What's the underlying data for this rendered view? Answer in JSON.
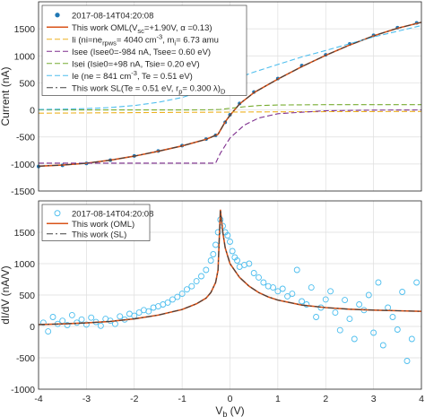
{
  "chart_data": [
    {
      "type": "line",
      "ylabel": "Current (nA)",
      "xlim": [
        -4,
        4
      ],
      "ylim": [
        -1500,
        2000
      ],
      "yticks": [
        -1500,
        -1000,
        -500,
        0,
        500,
        1000,
        1500
      ],
      "grid": true,
      "legend": "top-left",
      "series": [
        {
          "name": "2017-08-14T04:20:08",
          "style": "markers",
          "color": "#1f77b4",
          "x": [
            -4.0,
            -3.5,
            -3.0,
            -2.5,
            -2.0,
            -1.5,
            -1.0,
            -0.5,
            -0.3,
            -0.1,
            0.0,
            0.2,
            0.5,
            1.0,
            1.5,
            2.0,
            2.5,
            3.0,
            3.5,
            3.9
          ],
          "y": [
            -1045,
            -1025,
            -990,
            -930,
            -850,
            -760,
            -660,
            -540,
            -470,
            -230,
            -90,
            120,
            330,
            580,
            820,
            1020,
            1220,
            1380,
            1520,
            1610
          ]
        },
        {
          "name": "This work OML(V",
          "name_sub": "sc",
          "name_tail": "=+1.90V, α =0.13)",
          "color": "#d95319",
          "x": [
            -4.0,
            -3.5,
            -3.0,
            -2.5,
            -2.0,
            -1.5,
            -1.0,
            -0.5,
            -0.25,
            -0.1,
            0.0,
            0.2,
            0.5,
            1.0,
            1.5,
            2.0,
            2.5,
            3.0,
            3.5,
            4.0
          ],
          "y": [
            -1040,
            -1020,
            -985,
            -930,
            -855,
            -765,
            -665,
            -545,
            -450,
            -220,
            -100,
            110,
            320,
            570,
            800,
            1010,
            1200,
            1370,
            1510,
            1620
          ]
        },
        {
          "name": "Ii (ni=ne",
          "name_sub": "rpws",
          "name_tail": "= 4040 cm",
          "name_sup": "-3",
          "name_end": ", m",
          "name_sub2": "i",
          "name_end2": "= 6.73 amu",
          "style": "dashed",
          "color": "#edb120",
          "x": [
            -4,
            -3,
            -2,
            -1,
            0,
            1,
            2,
            3,
            4
          ],
          "y": [
            -60,
            -55,
            -50,
            -45,
            -40,
            -35,
            -32,
            -30,
            -28
          ]
        },
        {
          "name": "Isee (Isee0=-984 nA, Tsee= 0.60 eV)",
          "style": "dashed",
          "color": "#7e2f8e",
          "x": [
            -4,
            -3,
            -2,
            -1,
            -0.3,
            -0.2,
            0,
            0.3,
            0.6,
            1,
            2,
            3,
            4
          ],
          "y": [
            -984,
            -984,
            -984,
            -984,
            -984,
            -800,
            -520,
            -280,
            -150,
            -70,
            -15,
            -3,
            0
          ]
        },
        {
          "name": "Isei (Isie0=+98 nA, Tsie= 0.20 eV)",
          "style": "dashed",
          "color": "#77ac30",
          "x": [
            -4,
            -2,
            -0.5,
            -0.2,
            0,
            0.3,
            0.6,
            1,
            2,
            3,
            4
          ],
          "y": [
            0,
            0,
            2,
            10,
            30,
            60,
            80,
            90,
            97,
            98,
            98
          ]
        },
        {
          "name": "Ie (ne =  841 cm",
          "name_sup": "-3",
          "name_tail": ", Te = 0.51 eV)",
          "style": "dashed",
          "color": "#4dbeee",
          "x": [
            -4,
            -3.5,
            -3,
            -2.5,
            -2,
            -1.5,
            -1,
            -0.5,
            -0.3,
            0,
            0.5,
            1,
            1.5,
            2,
            3,
            4
          ],
          "y": [
            10,
            15,
            25,
            45,
            80,
            140,
            230,
            370,
            440,
            540,
            700,
            840,
            980,
            1100,
            1350,
            1560
          ]
        },
        {
          "name": "This work SL(Te = 0.51 eV, r",
          "name_sub": "p",
          "name_tail": "= 0.300 λ",
          "name_sub2": "D",
          "name_end": ")",
          "style": "dashdot",
          "color": "#404040",
          "x": [
            -4.0,
            -3.5,
            -3.0,
            -2.5,
            -2.0,
            -1.5,
            -1.0,
            -0.5,
            -0.25,
            -0.1,
            0.0,
            0.2,
            0.5,
            1.0,
            1.5,
            2.0,
            2.5,
            3.0,
            3.5,
            4.0
          ],
          "y": [
            -1040,
            -1020,
            -985,
            -930,
            -855,
            -765,
            -665,
            -545,
            -450,
            -220,
            -100,
            110,
            320,
            570,
            800,
            1010,
            1200,
            1370,
            1510,
            1620
          ]
        }
      ]
    },
    {
      "type": "scatter",
      "xlabel": "V",
      "xlabel_sub": "b",
      "xlabel_tail": " (V)",
      "ylabel": "dI/dV (nA/V)",
      "xlim": [
        -4,
        4
      ],
      "ylim": [
        -1000,
        2000
      ],
      "xticks": [
        -4,
        -3,
        -2,
        -1,
        0,
        1,
        2,
        3,
        4
      ],
      "yticks": [
        -1000,
        -500,
        0,
        500,
        1000,
        1500
      ],
      "grid": true,
      "legend": "top-left",
      "series": [
        {
          "name": "2017-08-14T04:20:08",
          "style": "open-circles",
          "color": "#4dbeee",
          "x": [
            -3.9,
            -3.8,
            -3.7,
            -3.6,
            -3.5,
            -3.4,
            -3.3,
            -3.2,
            -3.1,
            -3.0,
            -2.9,
            -2.8,
            -2.7,
            -2.6,
            -2.5,
            -2.4,
            -2.3,
            -2.2,
            -2.1,
            -2.0,
            -1.9,
            -1.8,
            -1.7,
            -1.6,
            -1.5,
            -1.4,
            -1.3,
            -1.2,
            -1.1,
            -1.0,
            -0.9,
            -0.8,
            -0.7,
            -0.6,
            -0.5,
            -0.4,
            -0.35,
            -0.3,
            -0.25,
            -0.2,
            -0.15,
            -0.1,
            -0.05,
            0.0,
            0.05,
            0.1,
            0.15,
            0.2,
            0.3,
            0.4,
            0.5,
            0.6,
            0.7,
            0.8,
            0.9,
            1.0,
            1.1,
            1.2,
            1.3,
            1.4,
            1.5,
            1.6,
            1.7,
            1.8,
            1.9,
            2.0,
            2.1,
            2.2,
            2.3,
            2.4,
            2.5,
            2.6,
            2.7,
            2.8,
            2.9,
            3.0,
            3.1,
            3.2,
            3.3,
            3.4,
            3.5,
            3.6,
            3.7,
            3.8,
            3.9
          ],
          "y": [
            60,
            -80,
            150,
            40,
            90,
            20,
            180,
            60,
            110,
            30,
            140,
            70,
            10,
            120,
            90,
            40,
            160,
            110,
            200,
            170,
            220,
            260,
            240,
            300,
            320,
            350,
            380,
            430,
            470,
            520,
            590,
            640,
            720,
            800,
            900,
            1050,
            1150,
            1300,
            1500,
            1700,
            1600,
            1500,
            1450,
            1350,
            1200,
            1100,
            1050,
            950,
            980,
            1000,
            850,
            780,
            700,
            640,
            620,
            560,
            600,
            480,
            520,
            900,
            400,
            350,
            620,
            150,
            300,
            430,
            560,
            220,
            -60,
            420,
            120,
            -200,
            350,
            260,
            500,
            -100,
            700,
            -300,
            300,
            150,
            -50,
            550,
            -550,
            -200,
            700
          ]
        },
        {
          "name": "This work (OML)",
          "color": "#d95319",
          "x": [
            -4,
            -3.5,
            -3,
            -2.5,
            -2,
            -1.5,
            -1,
            -0.7,
            -0.5,
            -0.4,
            -0.3,
            -0.25,
            -0.2,
            -0.15,
            -0.1,
            0,
            0.2,
            0.4,
            0.6,
            0.8,
            1,
            1.5,
            2,
            2.5,
            3,
            3.5,
            4
          ],
          "y": [
            30,
            40,
            55,
            80,
            120,
            180,
            270,
            360,
            450,
            540,
            700,
            900,
            1860,
            1500,
            1250,
            1000,
            780,
            640,
            540,
            470,
            420,
            340,
            300,
            275,
            260,
            250,
            240
          ]
        },
        {
          "name": "This work (SL)",
          "style": "dashdot",
          "color": "#404040",
          "x": [
            -4,
            -3.5,
            -3,
            -2.5,
            -2,
            -1.5,
            -1,
            -0.7,
            -0.5,
            -0.4,
            -0.3,
            -0.25,
            -0.2,
            -0.15,
            -0.1,
            0,
            0.2,
            0.4,
            0.6,
            0.8,
            1,
            1.5,
            2,
            2.5,
            3,
            3.5,
            4
          ],
          "y": [
            30,
            40,
            55,
            80,
            120,
            180,
            270,
            360,
            450,
            540,
            700,
            900,
            1860,
            1500,
            1250,
            1000,
            780,
            640,
            540,
            470,
            420,
            340,
            300,
            275,
            260,
            250,
            240
          ]
        }
      ]
    }
  ]
}
